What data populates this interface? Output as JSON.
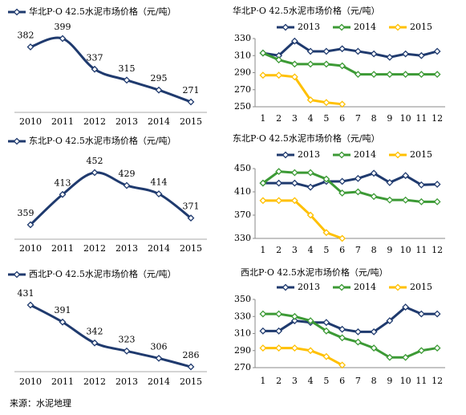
{
  "chart_data": [
    {
      "type": "line",
      "smooth": true,
      "categories": [
        "2010",
        "2011",
        "2012",
        "2013",
        "2014",
        "2015"
      ],
      "series": [
        {
          "name": "华北P·O 42.5水泥市场价格（元/吨）",
          "color": "#1f3a6e",
          "values": [
            382,
            399,
            337,
            315,
            295,
            271
          ]
        }
      ]
    },
    {
      "type": "line",
      "title": "华北P·O 42.5水泥市场价格（元/吨）",
      "categories": [
        "1",
        "2",
        "3",
        "4",
        "5",
        "6",
        "7",
        "8",
        "9",
        "10",
        "11",
        "12"
      ],
      "ylim": [
        250,
        330
      ],
      "yticks": [
        250,
        270,
        290,
        310,
        330
      ],
      "series": [
        {
          "name": "2013",
          "color": "#1f3a6e",
          "values": [
            313,
            310,
            327,
            315,
            315,
            318,
            315,
            312,
            308,
            312,
            310,
            315
          ]
        },
        {
          "name": "2014",
          "color": "#3c9a35",
          "values": [
            313,
            305,
            300,
            300,
            300,
            298,
            288,
            288,
            288,
            288,
            288,
            288
          ]
        },
        {
          "name": "2015",
          "color": "#ffc000",
          "values": [
            287,
            287,
            285,
            258,
            255,
            253,
            null,
            null,
            null,
            null,
            null,
            null
          ]
        }
      ]
    },
    {
      "type": "line",
      "smooth": true,
      "categories": [
        "2010",
        "2011",
        "2012",
        "2013",
        "2014",
        "2015"
      ],
      "series": [
        {
          "name": "东北P·O 42.5水泥市场价格（元/吨）",
          "color": "#1f3a6e",
          "values": [
            359,
            413,
            452,
            429,
            414,
            371
          ]
        }
      ]
    },
    {
      "type": "line",
      "title": "东北P·O 42.5水泥市场价格（元/吨）",
      "categories": [
        "1",
        "2",
        "3",
        "4",
        "5",
        "6",
        "7",
        "8",
        "9",
        "10",
        "11",
        "12"
      ],
      "ylim": [
        330,
        450
      ],
      "yticks": [
        330,
        370,
        410,
        450
      ],
      "series": [
        {
          "name": "2013",
          "color": "#1f3a6e",
          "values": [
            425,
            425,
            425,
            418,
            428,
            428,
            433,
            442,
            426,
            438,
            422,
            423
          ]
        },
        {
          "name": "2014",
          "color": "#3c9a35",
          "values": [
            425,
            445,
            443,
            443,
            432,
            408,
            410,
            402,
            396,
            396,
            393,
            393
          ]
        },
        {
          "name": "2015",
          "color": "#ffc000",
          "values": [
            395,
            395,
            395,
            370,
            340,
            330,
            null,
            null,
            null,
            null,
            null,
            null
          ]
        }
      ]
    },
    {
      "type": "line",
      "smooth": true,
      "categories": [
        "2010",
        "2011",
        "2012",
        "2013",
        "2014",
        "2015"
      ],
      "series": [
        {
          "name": "西北P·O 42.5水泥市场价格（元/吨）",
          "color": "#1f3a6e",
          "values": [
            431,
            391,
            342,
            323,
            306,
            286
          ]
        }
      ]
    },
    {
      "type": "line",
      "title": "西北P·O 42.5水泥市场价格（元/吨）",
      "categories": [
        "1",
        "2",
        "3",
        "4",
        "5",
        "6",
        "7",
        "8",
        "9",
        "10",
        "11",
        "12"
      ],
      "ylim": [
        270,
        350
      ],
      "yticks": [
        270,
        290,
        310,
        330,
        350
      ],
      "series": [
        {
          "name": "2013",
          "color": "#1f3a6e",
          "values": [
            313,
            313,
            325,
            323,
            323,
            315,
            312,
            312,
            325,
            341,
            333,
            333
          ]
        },
        {
          "name": "2014",
          "color": "#3c9a35",
          "values": [
            333,
            333,
            330,
            325,
            313,
            305,
            300,
            293,
            282,
            282,
            290,
            293
          ]
        },
        {
          "name": "2015",
          "color": "#ffc000",
          "values": [
            293,
            293,
            293,
            290,
            283,
            273,
            null,
            null,
            null,
            null,
            null,
            null
          ]
        }
      ]
    }
  ],
  "source": "来源：水泥地理"
}
